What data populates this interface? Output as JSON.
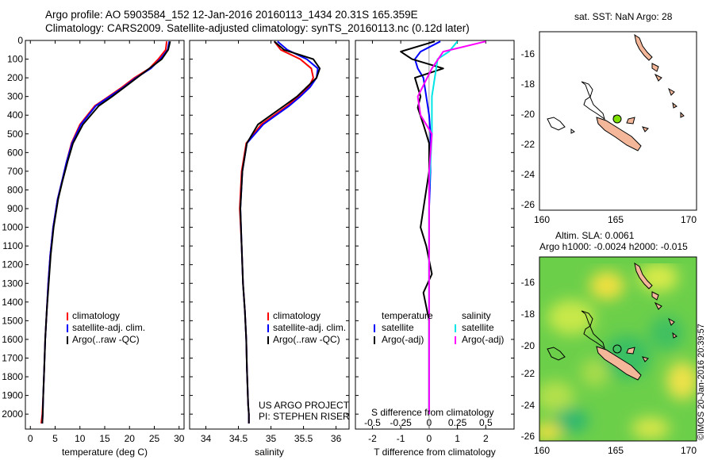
{
  "header": {
    "line1": "Argo profile: AO 5903584_152 12-Jan-2016 20160113_1434 20.31S 165.359E",
    "line2": "Climatology: CARS2009. Satellite-adjusted climatology: synTS_20160113.nc (0.12d later)"
  },
  "side_label": "©IMOS 20-Jan-2016 20:39:57",
  "colors": {
    "clim": "#ff0000",
    "sat": "#0000ff",
    "argo": "#000000",
    "sal_sat": "#00e5e5",
    "sal_argo": "#ff00ff",
    "land": "#f4b79a",
    "dot": "#7ee000"
  },
  "chart_data": [
    {
      "type": "line",
      "id": "temp",
      "xlabel": "temperature (deg C)",
      "xlim": [
        -1,
        31
      ],
      "ylim": [
        0,
        2080
      ],
      "xticks": [
        "0",
        "5",
        "10",
        "15",
        "20",
        "25",
        "30"
      ],
      "xtick_vals": [
        0,
        5,
        10,
        15,
        20,
        25,
        30
      ],
      "yticks": [
        "0",
        "100",
        "200",
        "300",
        "400",
        "500",
        "600",
        "700",
        "800",
        "900",
        "1000",
        "1100",
        "1200",
        "1300",
        "1400",
        "1500",
        "1600",
        "1700",
        "1800",
        "1900",
        "2000"
      ],
      "ytick_vals": [
        0,
        100,
        200,
        300,
        400,
        500,
        600,
        700,
        800,
        900,
        1000,
        1100,
        1200,
        1300,
        1400,
        1500,
        1600,
        1700,
        1800,
        1900,
        2000
      ],
      "legend": [
        "climatology",
        "satellite-adj. clim.",
        "Argo(..raw -QC)"
      ],
      "series": [
        {
          "name": "climatology",
          "role": "clim",
          "x": [
            27.5,
            27.3,
            25.8,
            24.0,
            21.0,
            18.5,
            15.8,
            13.0,
            10.0,
            8.3,
            7.3,
            6.4,
            5.5,
            4.6,
            4.0,
            3.6,
            3.3,
            3.0,
            2.8,
            2.6,
            2.4,
            2.2
          ],
          "y": [
            5,
            50,
            100,
            150,
            200,
            250,
            300,
            350,
            450,
            550,
            650,
            750,
            850,
            1000,
            1150,
            1300,
            1450,
            1600,
            1750,
            1900,
            2000,
            2050
          ]
        },
        {
          "name": "satellite-adj. clim.",
          "role": "sat",
          "x": [
            28.0,
            27.7,
            26.2,
            24.3,
            21.3,
            18.8,
            16.0,
            13.2,
            10.2,
            8.4,
            7.3,
            6.4,
            5.5,
            4.6,
            4.0,
            3.6,
            3.3,
            3.0,
            2.8,
            2.6,
            2.5,
            2.4
          ],
          "y": [
            5,
            50,
            100,
            150,
            200,
            250,
            300,
            350,
            450,
            550,
            650,
            750,
            850,
            1000,
            1150,
            1300,
            1450,
            1600,
            1750,
            1900,
            2000,
            2050
          ]
        },
        {
          "name": "Argo(..raw -QC)",
          "role": "argo",
          "x": [
            28.2,
            27.8,
            26.5,
            24.0,
            21.5,
            19.0,
            16.5,
            13.8,
            10.6,
            8.6,
            7.5,
            6.5,
            5.6,
            4.7,
            4.1,
            3.7,
            3.3,
            3.0,
            2.8,
            2.6,
            2.5,
            2.4
          ],
          "y": [
            5,
            50,
            100,
            150,
            200,
            250,
            300,
            350,
            450,
            550,
            650,
            750,
            850,
            1000,
            1150,
            1300,
            1450,
            1600,
            1750,
            1900,
            2000,
            2050
          ]
        }
      ]
    },
    {
      "type": "line",
      "id": "sal",
      "xlabel": "salinity",
      "xlim": [
        33.75,
        36.2
      ],
      "ylim": [
        0,
        2080
      ],
      "xticks": [
        "34",
        "34.5",
        "35",
        "35.5",
        "36"
      ],
      "xtick_vals": [
        34,
        34.5,
        35,
        35.5,
        36
      ],
      "legend": [
        "climatology",
        "satellite-adj. clim.",
        "Argo(..raw -QC)"
      ],
      "note1": "US ARGO PROJECT",
      "note2": "PI: STEPHEN RISER",
      "series": [
        {
          "name": "climatology",
          "role": "clim",
          "x": [
            35.05,
            35.15,
            35.45,
            35.62,
            35.65,
            35.58,
            35.42,
            35.25,
            35.05,
            34.85,
            34.62,
            34.55,
            34.52,
            34.55,
            34.57,
            34.6,
            34.62,
            34.63,
            34.64,
            34.65,
            34.66,
            34.66
          ],
          "y": [
            5,
            50,
            100,
            150,
            200,
            250,
            300,
            350,
            400,
            450,
            550,
            700,
            900,
            1100,
            1300,
            1450,
            1600,
            1750,
            1850,
            1950,
            2000,
            2050
          ]
        },
        {
          "name": "satellite-adj. clim.",
          "role": "sat",
          "x": [
            35.1,
            35.25,
            35.55,
            35.72,
            35.7,
            35.6,
            35.45,
            35.28,
            35.08,
            34.88,
            34.63,
            34.56,
            34.53,
            34.55,
            34.57,
            34.6,
            34.62,
            34.63,
            34.64,
            34.65,
            34.66,
            34.66
          ],
          "y": [
            5,
            50,
            100,
            150,
            200,
            250,
            300,
            350,
            400,
            450,
            550,
            700,
            900,
            1100,
            1300,
            1450,
            1600,
            1750,
            1850,
            1950,
            2000,
            2050
          ]
        },
        {
          "name": "Argo(..raw -QC)",
          "role": "argo",
          "x": [
            35.05,
            35.2,
            35.65,
            35.75,
            35.7,
            35.55,
            35.4,
            35.2,
            35.0,
            34.8,
            34.63,
            34.56,
            34.53,
            34.55,
            34.57,
            34.6,
            34.62,
            34.63,
            34.64,
            34.65,
            34.66,
            34.66
          ],
          "y": [
            5,
            50,
            100,
            150,
            200,
            250,
            300,
            350,
            400,
            450,
            550,
            700,
            900,
            1100,
            1300,
            1450,
            1600,
            1750,
            1850,
            1950,
            2000,
            2050
          ]
        }
      ]
    },
    {
      "type": "line",
      "id": "diff",
      "xlabel": "T difference from climatology",
      "toplabel": "S difference from climatology",
      "xlim": [
        -2.6,
        3.0
      ],
      "ylim": [
        0,
        2080
      ],
      "xticks": [
        "-2",
        "-1",
        "0",
        "1",
        "2"
      ],
      "xtick_vals": [
        -2,
        -1,
        0,
        1,
        2
      ],
      "top_ticks": [
        "-0.5",
        "-0.25",
        "0",
        "0.25",
        "0.5"
      ],
      "top_tick_vals": [
        -2,
        -1,
        0,
        1,
        2
      ],
      "legend": [
        "temperature",
        "satellite",
        "Argo(-adj)",
        "salinity",
        "satellite",
        "Argo(-adj)"
      ],
      "series": [
        {
          "name": "satellite",
          "role": "sat",
          "x": [
            0.4,
            -0.3,
            -0.5,
            -0.4,
            -0.2,
            -0.1,
            0.0,
            0.05,
            0.05,
            0.0,
            0.0,
            0.0,
            0.0,
            0.0,
            0.0
          ],
          "y": [
            5,
            60,
            100,
            150,
            200,
            300,
            400,
            500,
            700,
            900,
            1100,
            1300,
            1500,
            1800,
            2000
          ]
        },
        {
          "name": "Argo(-adj)",
          "role": "argo",
          "x": [
            0.2,
            -1.0,
            -0.6,
            0.5,
            -0.5,
            -0.3,
            -0.4,
            -0.2,
            0.0,
            0.0,
            -0.3,
            -0.1,
            0.1,
            -0.2,
            0.0,
            0.0,
            0.0,
            0.0
          ],
          "y": [
            5,
            60,
            100,
            150,
            200,
            300,
            360,
            450,
            550,
            700,
            1000,
            1100,
            1250,
            1350,
            1500,
            1700,
            1900,
            2000
          ]
        },
        {
          "name": "satellite",
          "role": "sal_sat",
          "x": [
            1.0,
            0.7,
            0.3,
            0.2,
            0.1,
            0.1,
            0.0,
            0.0,
            0.0,
            0.0,
            0.0
          ],
          "y": [
            5,
            60,
            100,
            200,
            300,
            500,
            800,
            1100,
            1400,
            1700,
            2000
          ]
        },
        {
          "name": "Argo(-adj)",
          "role": "sal_argo",
          "x": [
            2.0,
            0.5,
            0.1,
            -0.4,
            -0.3,
            0.1,
            0.0,
            0.0,
            0.0,
            0.0
          ],
          "y": [
            5,
            60,
            150,
            300,
            400,
            500,
            700,
            1000,
            1500,
            2000
          ]
        }
      ]
    }
  ],
  "map1": {
    "title": "sat. SST: NaN Argo: 28",
    "xticks": [
      "160",
      "165",
      "170"
    ],
    "yticks": [
      "-16",
      "-18",
      "-20",
      "-22",
      "-24",
      "-26"
    ]
  },
  "map2": {
    "title1": "Altim. SLA: 0.0061",
    "title2": "Argo h1000: -0.0024 h2000: -0.015",
    "xticks": [
      "160",
      "165",
      "170"
    ],
    "yticks": [
      "-16",
      "-18",
      "-20",
      "-22",
      "-24",
      "-26"
    ]
  }
}
